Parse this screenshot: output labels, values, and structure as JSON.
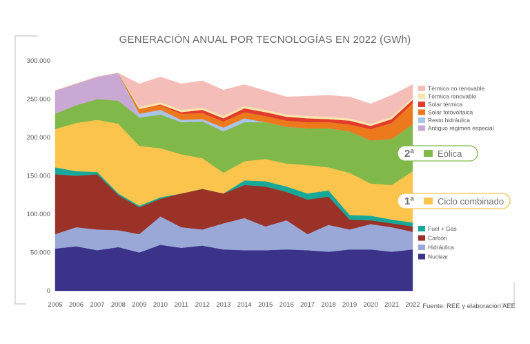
{
  "chart_data": {
    "type": "area",
    "stacked": true,
    "title": "GENERACIÓN ANUAL POR TECNOLOGÍAS EN 2022 (GWh)",
    "xlabel": "",
    "ylabel": "",
    "ylim": [
      0,
      300000
    ],
    "y_ticks": [
      "0",
      "50.000",
      "100.000",
      "150.000",
      "200.000",
      "250.000",
      "300.000"
    ],
    "y_tick_values": [
      0,
      50000,
      100000,
      150000,
      200000,
      250000,
      300000
    ],
    "x": [
      "2005",
      "2006",
      "2007",
      "2008",
      "2009",
      "2010",
      "2011",
      "2012",
      "2013",
      "2014",
      "2015",
      "2016",
      "2017",
      "2018",
      "2019",
      "2020",
      "2021",
      "2022"
    ],
    "grid": false,
    "series": [
      {
        "name": "Nuclear",
        "color": "#3b3289",
        "values": [
          55000,
          58000,
          53000,
          57000,
          50000,
          60000,
          56000,
          59000,
          54000,
          53000,
          53000,
          54000,
          53000,
          51000,
          54000,
          54000,
          51000,
          54000
        ]
      },
      {
        "name": "Hidráulica",
        "color": "#9aa8d8",
        "values": [
          19000,
          25000,
          27000,
          22000,
          24000,
          37000,
          27000,
          21000,
          34000,
          42000,
          31000,
          38000,
          21000,
          35000,
          26000,
          33000,
          32000,
          23000
        ]
      },
      {
        "name": "Carbón",
        "color": "#9b3228",
        "values": [
          78000,
          67000,
          72000,
          46000,
          35000,
          23000,
          44000,
          53000,
          39000,
          43000,
          52000,
          37000,
          45000,
          37000,
          13000,
          5000,
          5000,
          7000
        ]
      },
      {
        "name": "Fuel + Gas",
        "color": "#18a89a",
        "values": [
          9000,
          6000,
          3000,
          2000,
          2000,
          2000,
          0,
          0,
          0,
          6000,
          7000,
          7000,
          8000,
          8000,
          6000,
          6000,
          5000,
          5000
        ]
      },
      {
        "name": "Ciclo combinado",
        "color": "#fbc44c",
        "values": [
          50000,
          63000,
          68000,
          91000,
          78000,
          64000,
          51000,
          40000,
          27000,
          25000,
          29000,
          30000,
          37000,
          30000,
          55000,
          42000,
          45000,
          67000
        ]
      },
      {
        "name": "Eólica",
        "color": "#80b84a",
        "values": [
          20000,
          23000,
          27000,
          30000,
          37000,
          44000,
          42000,
          48000,
          54000,
          51000,
          48000,
          48000,
          48000,
          51000,
          54000,
          56000,
          60000,
          61000
        ]
      },
      {
        "name": "Antiguo régimen especial",
        "color": "#c9a8d3",
        "values": [
          30000,
          28000,
          29000,
          36000,
          0,
          0,
          0,
          0,
          0,
          0,
          0,
          0,
          0,
          0,
          0,
          0,
          0,
          0
        ]
      },
      {
        "name": "Resto hidráulica",
        "color": "#a9c3e9",
        "values": [
          0,
          0,
          0,
          0,
          5000,
          6000,
          3000,
          3000,
          5000,
          5000,
          0,
          0,
          0,
          0,
          0,
          0,
          0,
          0
        ]
      },
      {
        "name": "Solar fotovoltaica",
        "color": "#ec7a1c",
        "values": [
          0,
          0,
          0,
          0,
          6000,
          6000,
          8000,
          8000,
          8000,
          8000,
          8000,
          8000,
          8000,
          8000,
          9000,
          15000,
          21000,
          28000
        ]
      },
      {
        "name": "Solar térmica",
        "color": "#e23a2b",
        "values": [
          0,
          0,
          0,
          0,
          0,
          1000,
          2000,
          4000,
          4000,
          5000,
          5000,
          5000,
          5000,
          4000,
          5000,
          4000,
          5000,
          4000
        ]
      },
      {
        "name": "Térmica renovable",
        "color": "#fbe5ad",
        "values": [
          0,
          0,
          0,
          0,
          3000,
          3000,
          3000,
          3000,
          3000,
          3000,
          3000,
          3000,
          3000,
          3000,
          3000,
          3000,
          3000,
          3000
        ]
      },
      {
        "name": "Térmica no renovable",
        "color": "#f5bdb8",
        "values": [
          0,
          0,
          0,
          0,
          30000,
          33000,
          34000,
          35000,
          34000,
          28000,
          25000,
          23000,
          26000,
          28000,
          28000,
          26000,
          28000,
          17000
        ]
      }
    ],
    "legend_top": [
      {
        "name": "Térmica no renovable",
        "color": "#f5bdb8"
      },
      {
        "name": "Térmica renovable",
        "color": "#fbe5ad"
      },
      {
        "name": "Solar térmica",
        "color": "#e23a2b"
      },
      {
        "name": "Solar fotovoltaica",
        "color": "#ec7a1c"
      },
      {
        "name": "Resto hidráulica",
        "color": "#a9c3e9"
      },
      {
        "name": "Antiguo régimen especial",
        "color": "#c9a8d3"
      }
    ],
    "legend_bottom": [
      {
        "name": "Fuel + Gas",
        "color": "#18a89a"
      },
      {
        "name": "Carbón",
        "color": "#9b3228"
      },
      {
        "name": "Hidráulica",
        "color": "#9aa8d8"
      },
      {
        "name": "Nuclear",
        "color": "#3b3289"
      }
    ],
    "callouts": [
      {
        "rank": "2ª",
        "label": "Eólica",
        "color": "#80b84a",
        "border": "#80b84a"
      },
      {
        "rank": "1ª",
        "label": "Ciclo combinado",
        "color": "#fbc44c",
        "border": "#fbc44c"
      }
    ],
    "source": "Fuente: REE y elaboración AEE"
  }
}
